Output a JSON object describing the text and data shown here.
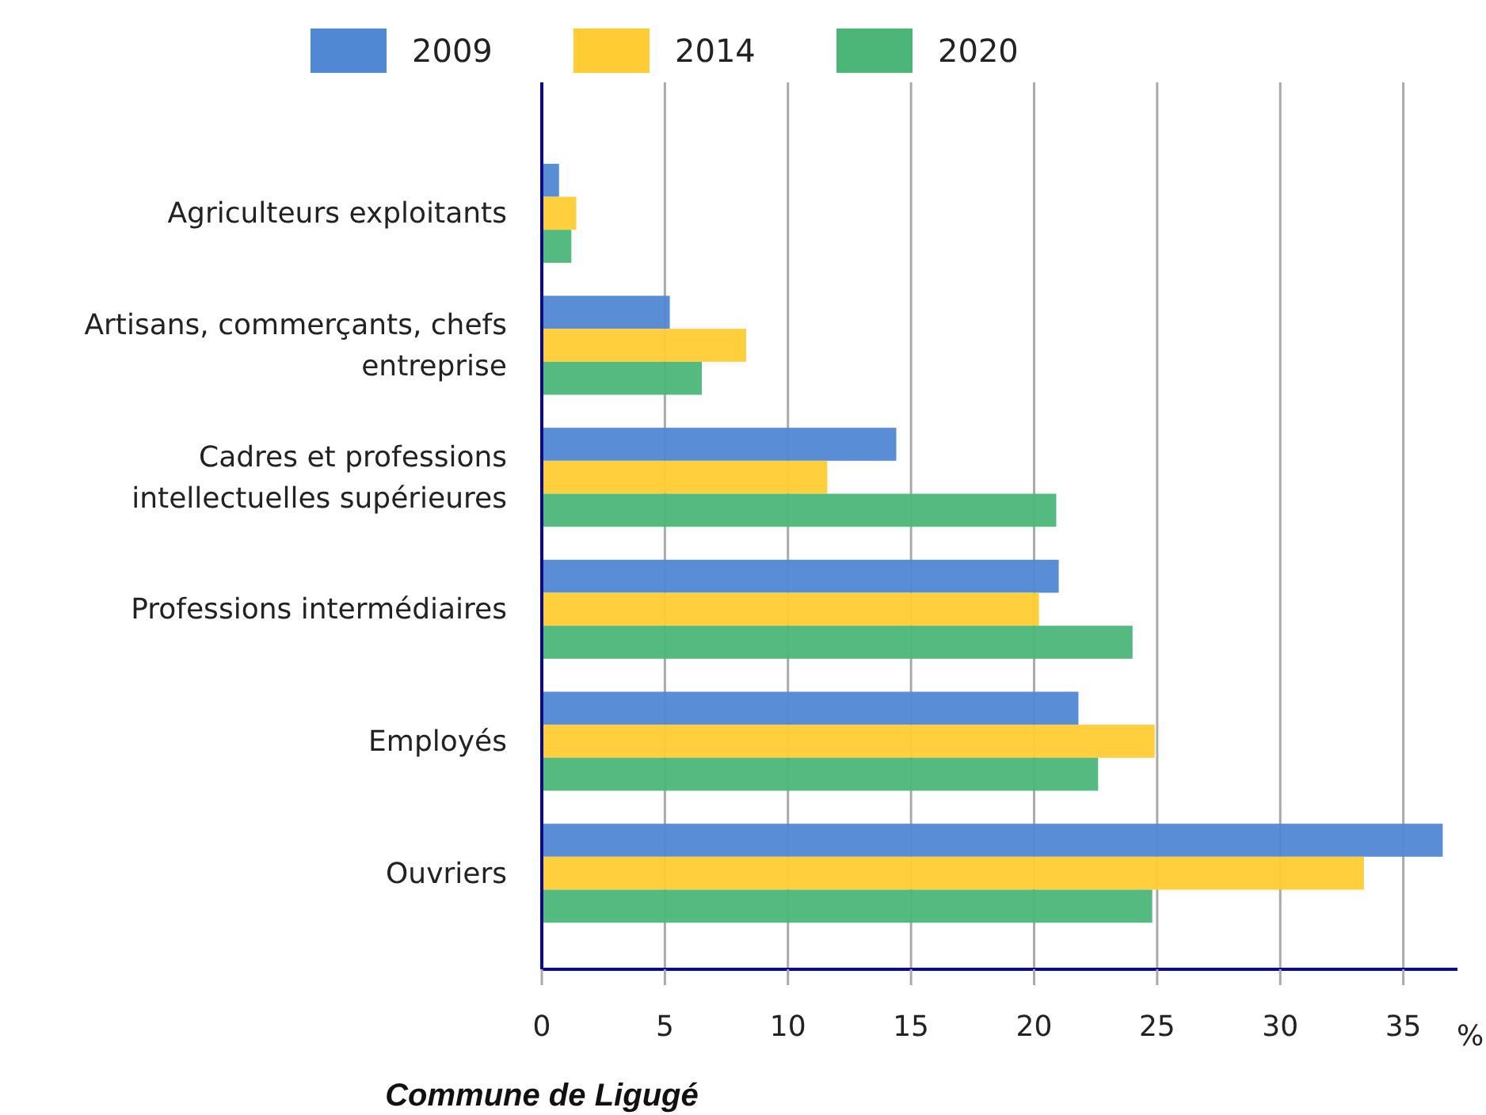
{
  "chart_data": {
    "type": "bar",
    "orientation": "horizontal",
    "title": "Commune de Ligugé",
    "xlabel": "%",
    "categories": [
      "Agriculteurs exploitants",
      "Artisans, commerçants, chefs entreprise",
      "Cadres et professions intellectuelles supérieures",
      "Professions intermédiaires",
      "Employés",
      "Ouvriers"
    ],
    "series": [
      {
        "name": "2009",
        "color": "#5088d4",
        "values": [
          0.7,
          5.2,
          14.4,
          21.0,
          21.8,
          36.6
        ]
      },
      {
        "name": "2014",
        "color": "#ffcc33",
        "values": [
          1.4,
          8.3,
          11.6,
          20.2,
          24.9,
          33.4
        ]
      },
      {
        "name": "2020",
        "color": "#4bb678",
        "values": [
          1.2,
          6.5,
          20.9,
          24.0,
          22.6,
          24.8
        ]
      }
    ],
    "xlim": [
      0,
      37.2
    ],
    "xticks": [
      0,
      5,
      10,
      15,
      20,
      25,
      30,
      35
    ],
    "grid": "x",
    "legend": "top"
  }
}
